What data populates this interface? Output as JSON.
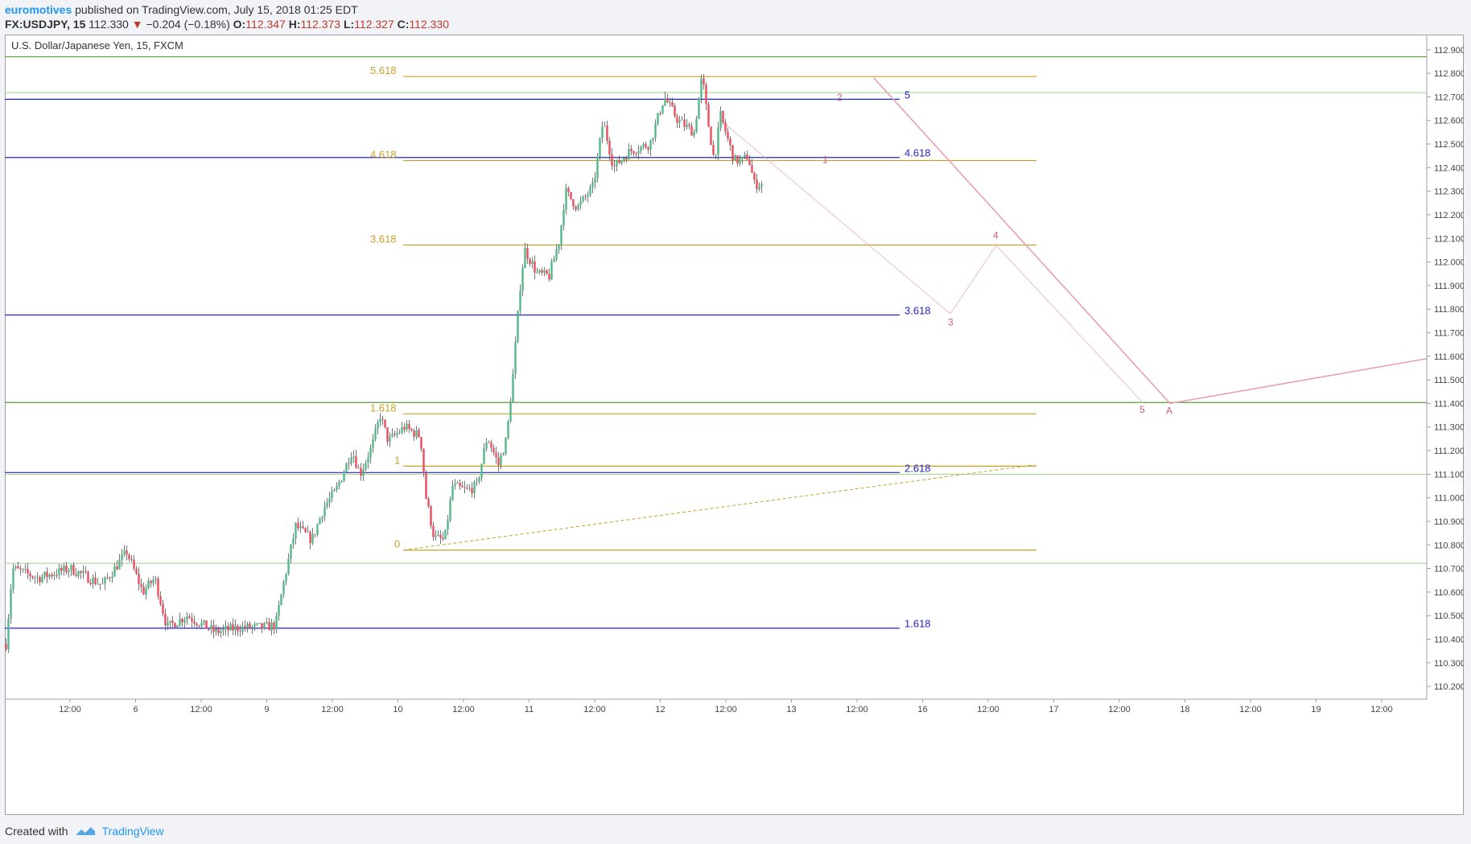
{
  "header": {
    "author": "euromotives",
    "published_text": "published on TradingView.com, July 15, 2018 01:25 EDT",
    "symbol": "FX:USDJPY, 15",
    "last_price": "112.330",
    "change": "−0.204 (−0.18%)",
    "open_label": "O:",
    "open": "112.347",
    "high_label": "H:",
    "high": "112.373",
    "low_label": "L:",
    "low": "112.327",
    "close_label": "C:",
    "close": "112.330"
  },
  "chart_title": "U.S. Dollar/Japanese Yen, 15, FXCM",
  "footer": {
    "created_with": "Created with",
    "brand": "TradingView"
  },
  "colors": {
    "up": "#53b987",
    "down": "#eb4d5c",
    "fib_gold": "#c8a028",
    "fib_blue": "#2424c8",
    "green_line": "#5aa03c",
    "green_light": "#9fd08a",
    "projection": "#e6a0b4",
    "wave_label": "#d06070"
  },
  "chart_data": {
    "type": "candlestick",
    "title": "U.S. Dollar/Japanese Yen, 15, FXCM",
    "ylim": [
      110.18,
      112.93
    ],
    "y_ticks": [
      "112.900",
      "112.800",
      "112.700",
      "112.600",
      "112.500",
      "112.400",
      "112.300",
      "112.200",
      "112.100",
      "112.000",
      "111.900",
      "111.800",
      "111.700",
      "111.600",
      "111.500",
      "111.400",
      "111.300",
      "111.200",
      "111.100",
      "111.000",
      "110.900",
      "110.800",
      "110.700",
      "110.600",
      "110.500",
      "110.400",
      "110.300",
      "110.200"
    ],
    "x_ticks": [
      "12:00",
      "6",
      "12:00",
      "9",
      "12:00",
      "10",
      "12:00",
      "11",
      "12:00",
      "12",
      "12:00",
      "13",
      "12:00",
      "16",
      "12:00",
      "17",
      "12:00",
      "18",
      "12:00",
      "19",
      "12:00"
    ],
    "price_path": [
      [
        0,
        110.38
      ],
      [
        8,
        110.7
      ],
      [
        40,
        110.66
      ],
      [
        80,
        110.7
      ],
      [
        120,
        110.63
      ],
      [
        150,
        110.77
      ],
      [
        170,
        110.6
      ],
      [
        185,
        110.66
      ],
      [
        200,
        110.45
      ],
      [
        225,
        110.5
      ],
      [
        260,
        110.43
      ],
      [
        290,
        110.45
      ],
      [
        320,
        110.45
      ],
      [
        335,
        110.46
      ],
      [
        345,
        110.64
      ],
      [
        360,
        110.88
      ],
      [
        380,
        110.82
      ],
      [
        395,
        110.96
      ],
      [
        410,
        111.03
      ],
      [
        430,
        111.2
      ],
      [
        440,
        111.1
      ],
      [
        455,
        111.22
      ],
      [
        465,
        111.35
      ],
      [
        475,
        111.24
      ],
      [
        495,
        111.3
      ],
      [
        515,
        111.26
      ],
      [
        522,
        111.0
      ],
      [
        532,
        110.83
      ],
      [
        545,
        110.82
      ],
      [
        555,
        111.05
      ],
      [
        572,
        111.03
      ],
      [
        585,
        111.05
      ],
      [
        598,
        111.26
      ],
      [
        612,
        111.14
      ],
      [
        622,
        111.25
      ],
      [
        630,
        111.52
      ],
      [
        640,
        111.94
      ],
      [
        645,
        112.05
      ],
      [
        660,
        111.95
      ],
      [
        675,
        111.94
      ],
      [
        688,
        112.1
      ],
      [
        695,
        112.3
      ],
      [
        710,
        112.23
      ],
      [
        730,
        112.32
      ],
      [
        742,
        112.6
      ],
      [
        755,
        112.4
      ],
      [
        775,
        112.47
      ],
      [
        800,
        112.5
      ],
      [
        818,
        112.7
      ],
      [
        835,
        112.6
      ],
      [
        855,
        112.55
      ],
      [
        865,
        112.79
      ],
      [
        872,
        112.6
      ],
      [
        880,
        112.43
      ],
      [
        888,
        112.62
      ],
      [
        905,
        112.43
      ],
      [
        915,
        112.43
      ],
      [
        922,
        112.45
      ],
      [
        930,
        112.33
      ],
      [
        940,
        112.33
      ]
    ],
    "fib_gold": [
      {
        "label": "5.618",
        "price": 112.786
      },
      {
        "label": "4.618",
        "price": 112.43
      },
      {
        "label": "3.618",
        "price": 112.072
      },
      {
        "label": "1.618",
        "price": 111.356
      },
      {
        "label": "1",
        "price": 111.134
      },
      {
        "label": "0",
        "price": 110.778
      }
    ],
    "fib_blue": [
      {
        "label": "5",
        "price": 112.69
      },
      {
        "label": "4.618",
        "price": 112.443
      },
      {
        "label": "3.618",
        "price": 111.775
      },
      {
        "label": "2.618",
        "price": 111.107
      },
      {
        "label": "1.618",
        "price": 110.447
      }
    ],
    "horizontal_lines": [
      {
        "price": 112.87,
        "style": "green"
      },
      {
        "price": 112.718,
        "style": "green-light"
      },
      {
        "price": 111.404,
        "style": "green"
      },
      {
        "price": 111.1,
        "style": "green-light"
      },
      {
        "price": 110.722,
        "style": "green-light"
      }
    ],
    "wave_labels": [
      "1",
      "2",
      "3",
      "4",
      "5",
      "A"
    ],
    "projection_path": [
      {
        "label": "",
        "price": 112.6
      },
      {
        "label": "3",
        "price": 111.78
      },
      {
        "label": "4",
        "price": 112.07
      },
      {
        "label": "5",
        "price": 111.4
      }
    ],
    "channel_path": [
      {
        "price": 112.78
      },
      {
        "label": "A",
        "price": 111.4
      },
      {
        "price": 111.59
      }
    ],
    "trend_dashed": [
      {
        "price": 110.778
      },
      {
        "price": 111.14
      }
    ]
  }
}
